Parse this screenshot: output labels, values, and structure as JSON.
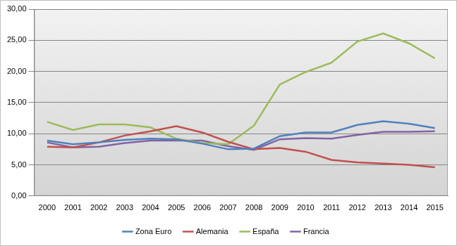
{
  "chart_data": {
    "type": "line",
    "categories": [
      "2000",
      "2001",
      "2002",
      "2003",
      "2004",
      "2005",
      "2006",
      "2007",
      "2008",
      "2009",
      "2010",
      "2011",
      "2012",
      "2013",
      "2014",
      "2015"
    ],
    "series": [
      {
        "name": "Zona Euro",
        "color": "#4f81bd",
        "values": [
          8.9,
          8.3,
          8.6,
          9.0,
          9.2,
          9.1,
          8.4,
          7.5,
          7.6,
          9.6,
          10.2,
          10.2,
          11.4,
          12.0,
          11.6,
          10.9
        ]
      },
      {
        "name": "Alemania",
        "color": "#c0504d",
        "values": [
          7.9,
          7.8,
          8.6,
          9.7,
          10.4,
          11.2,
          10.2,
          8.7,
          7.5,
          7.7,
          7.1,
          5.8,
          5.4,
          5.2,
          5.0,
          4.6
        ]
      },
      {
        "name": "España",
        "color": "#9bbb59",
        "values": [
          11.9,
          10.6,
          11.5,
          11.5,
          11.0,
          9.2,
          8.5,
          8.3,
          11.3,
          17.9,
          19.9,
          21.4,
          24.8,
          26.1,
          24.5,
          22.1
        ]
      },
      {
        "name": "Francia",
        "color": "#8064a2",
        "values": [
          8.6,
          7.8,
          7.9,
          8.5,
          8.9,
          8.9,
          8.9,
          8.0,
          7.4,
          9.1,
          9.3,
          9.2,
          9.8,
          10.3,
          10.3,
          10.4
        ]
      }
    ],
    "ylim": [
      0,
      30
    ],
    "yticks": [
      {
        "value": 0,
        "label": "0,00"
      },
      {
        "value": 5,
        "label": "5,00"
      },
      {
        "value": 10,
        "label": "10,00"
      },
      {
        "value": 15,
        "label": "15,00"
      },
      {
        "value": 20,
        "label": "20,00"
      },
      {
        "value": 25,
        "label": "25,00"
      },
      {
        "value": 30,
        "label": "30,00"
      }
    ],
    "grid": true,
    "legend": "bottom"
  }
}
